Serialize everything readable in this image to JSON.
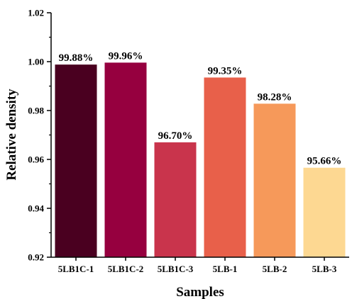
{
  "chart_data": {
    "type": "bar",
    "title": "",
    "xlabel": "Samples",
    "ylabel": "Relative density",
    "ylim": [
      0.92,
      1.02
    ],
    "yticks": [
      "0.92",
      "0.94",
      "0.96",
      "0.98",
      "1.00",
      "1.02"
    ],
    "categories": [
      "5LB1C-1",
      "5LB1C-2",
      "5LB1C-3",
      "5LB-1",
      "5LB-2",
      "5LB-3"
    ],
    "values": [
      0.9988,
      0.9996,
      0.967,
      0.9935,
      0.9828,
      0.9566
    ],
    "data_labels": [
      "99.88%",
      "99.96%",
      "96.70%",
      "99.35%",
      "98.28%",
      "95.66%"
    ],
    "colors": [
      "#4a0020",
      "#96003f",
      "#c9344c",
      "#e8604a",
      "#f6995a",
      "#fdd892"
    ],
    "grid": false,
    "legend": "none"
  }
}
